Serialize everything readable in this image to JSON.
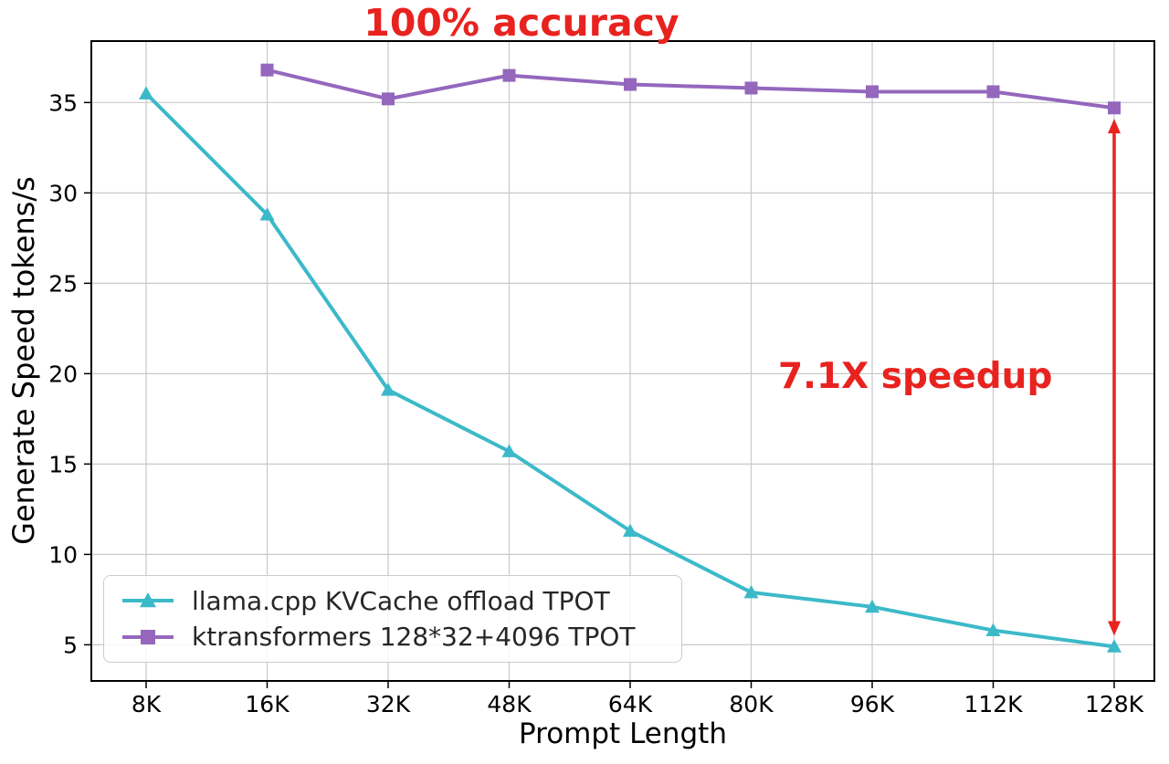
{
  "colors": {
    "annotation_red": "#e8231f",
    "axis": "#000000",
    "grid": "#c9c9c9",
    "background": "#ffffff"
  },
  "chart_data": {
    "type": "line",
    "title": "100% accuracy",
    "xlabel": "Prompt Length",
    "ylabel": "Generate Speed tokens/s",
    "categories": [
      "8K",
      "16K",
      "32K",
      "48K",
      "64K",
      "80K",
      "96K",
      "112K",
      "128K"
    ],
    "series": [
      {
        "name": "llama.cpp KVCache offload TPOT",
        "color": "#3cb9c9",
        "marker": "triangle",
        "values": [
          35.5,
          28.8,
          19.1,
          15.7,
          11.3,
          7.9,
          7.1,
          5.8,
          4.9
        ]
      },
      {
        "name": "ktransformers 128*32+4096 TPOT",
        "color": "#9467bd",
        "marker": "square",
        "values": [
          null,
          36.8,
          35.2,
          36.5,
          36.0,
          35.8,
          35.6,
          35.6,
          34.7
        ]
      }
    ],
    "ylim": [
      3,
      38.4
    ],
    "yticks": [
      5,
      10,
      15,
      20,
      25,
      30,
      35
    ],
    "grid": true,
    "grid_color": "#c9c9c9",
    "legend_position": "lower-left",
    "annotation_arrow": {
      "category": "128K",
      "from": 34.1,
      "to": 5.5,
      "color": "#e8231f",
      "label": "7.1X speedup"
    }
  }
}
